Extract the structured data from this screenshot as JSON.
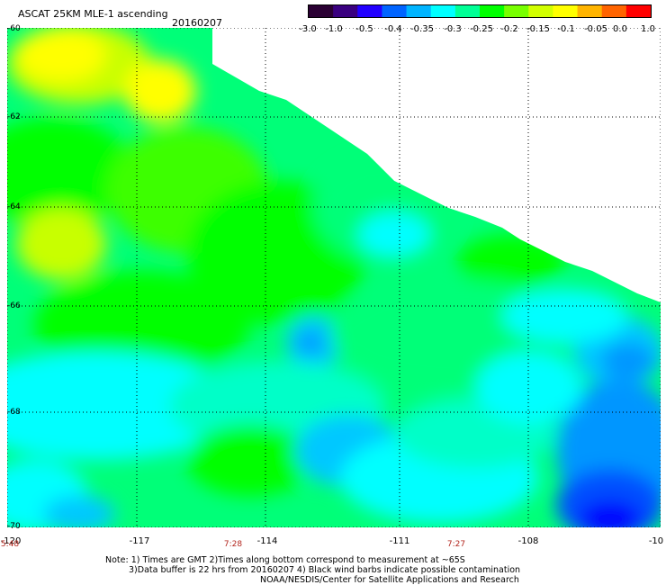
{
  "header": {
    "title": "ASCAT 25KM MLE-1 ascending",
    "date": "20160207"
  },
  "colorbar": {
    "tick_labels": [
      "-3.0",
      "-1.0",
      "-0.5",
      "-0.4",
      "-0.35",
      "-0.3",
      "-0.25",
      "-0.2",
      "-0.15",
      "-0.1",
      "-0.05",
      "0.0",
      "1.0"
    ],
    "colors": [
      "#2a0033",
      "#3a0080",
      "#2200ff",
      "#0064ff",
      "#00b4ff",
      "#00ffff",
      "#00ff96",
      "#00ff00",
      "#78ff00",
      "#d2ff00",
      "#ffff00",
      "#ffb400",
      "#ff6400",
      "#ff0000"
    ]
  },
  "axes": {
    "lat_labels": [
      "-60",
      "-62",
      "-64",
      "-66",
      "-68",
      "-70"
    ],
    "lon_labels": [
      "-120",
      "-117",
      "-114",
      "-111",
      "-108",
      "-10"
    ],
    "time_labels": [
      "5:48",
      "7:28",
      "7:27"
    ]
  },
  "notes": {
    "line1": "Note: 1) Times are GMT 2)Times along bottom correspond to measurement at ~65S",
    "line2": "3)Data buffer is 22 hrs from 20160207 4) Black wind barbs indicate possible contamination",
    "line3": "NOAA/NESDIS/Center for Satellite Applications and Research"
  },
  "map_colors": {
    "yellow": "#ffff00",
    "yellow_green": "#c8ff00",
    "green": "#00ff00",
    "green2": "#3cff00",
    "spring": "#00ff78",
    "cyan_green": "#00ffc8",
    "cyan": "#00ffff",
    "sky": "#00c8ff",
    "azure": "#0096ff",
    "blue": "#0050ff",
    "deep_blue": "#0000ff"
  }
}
